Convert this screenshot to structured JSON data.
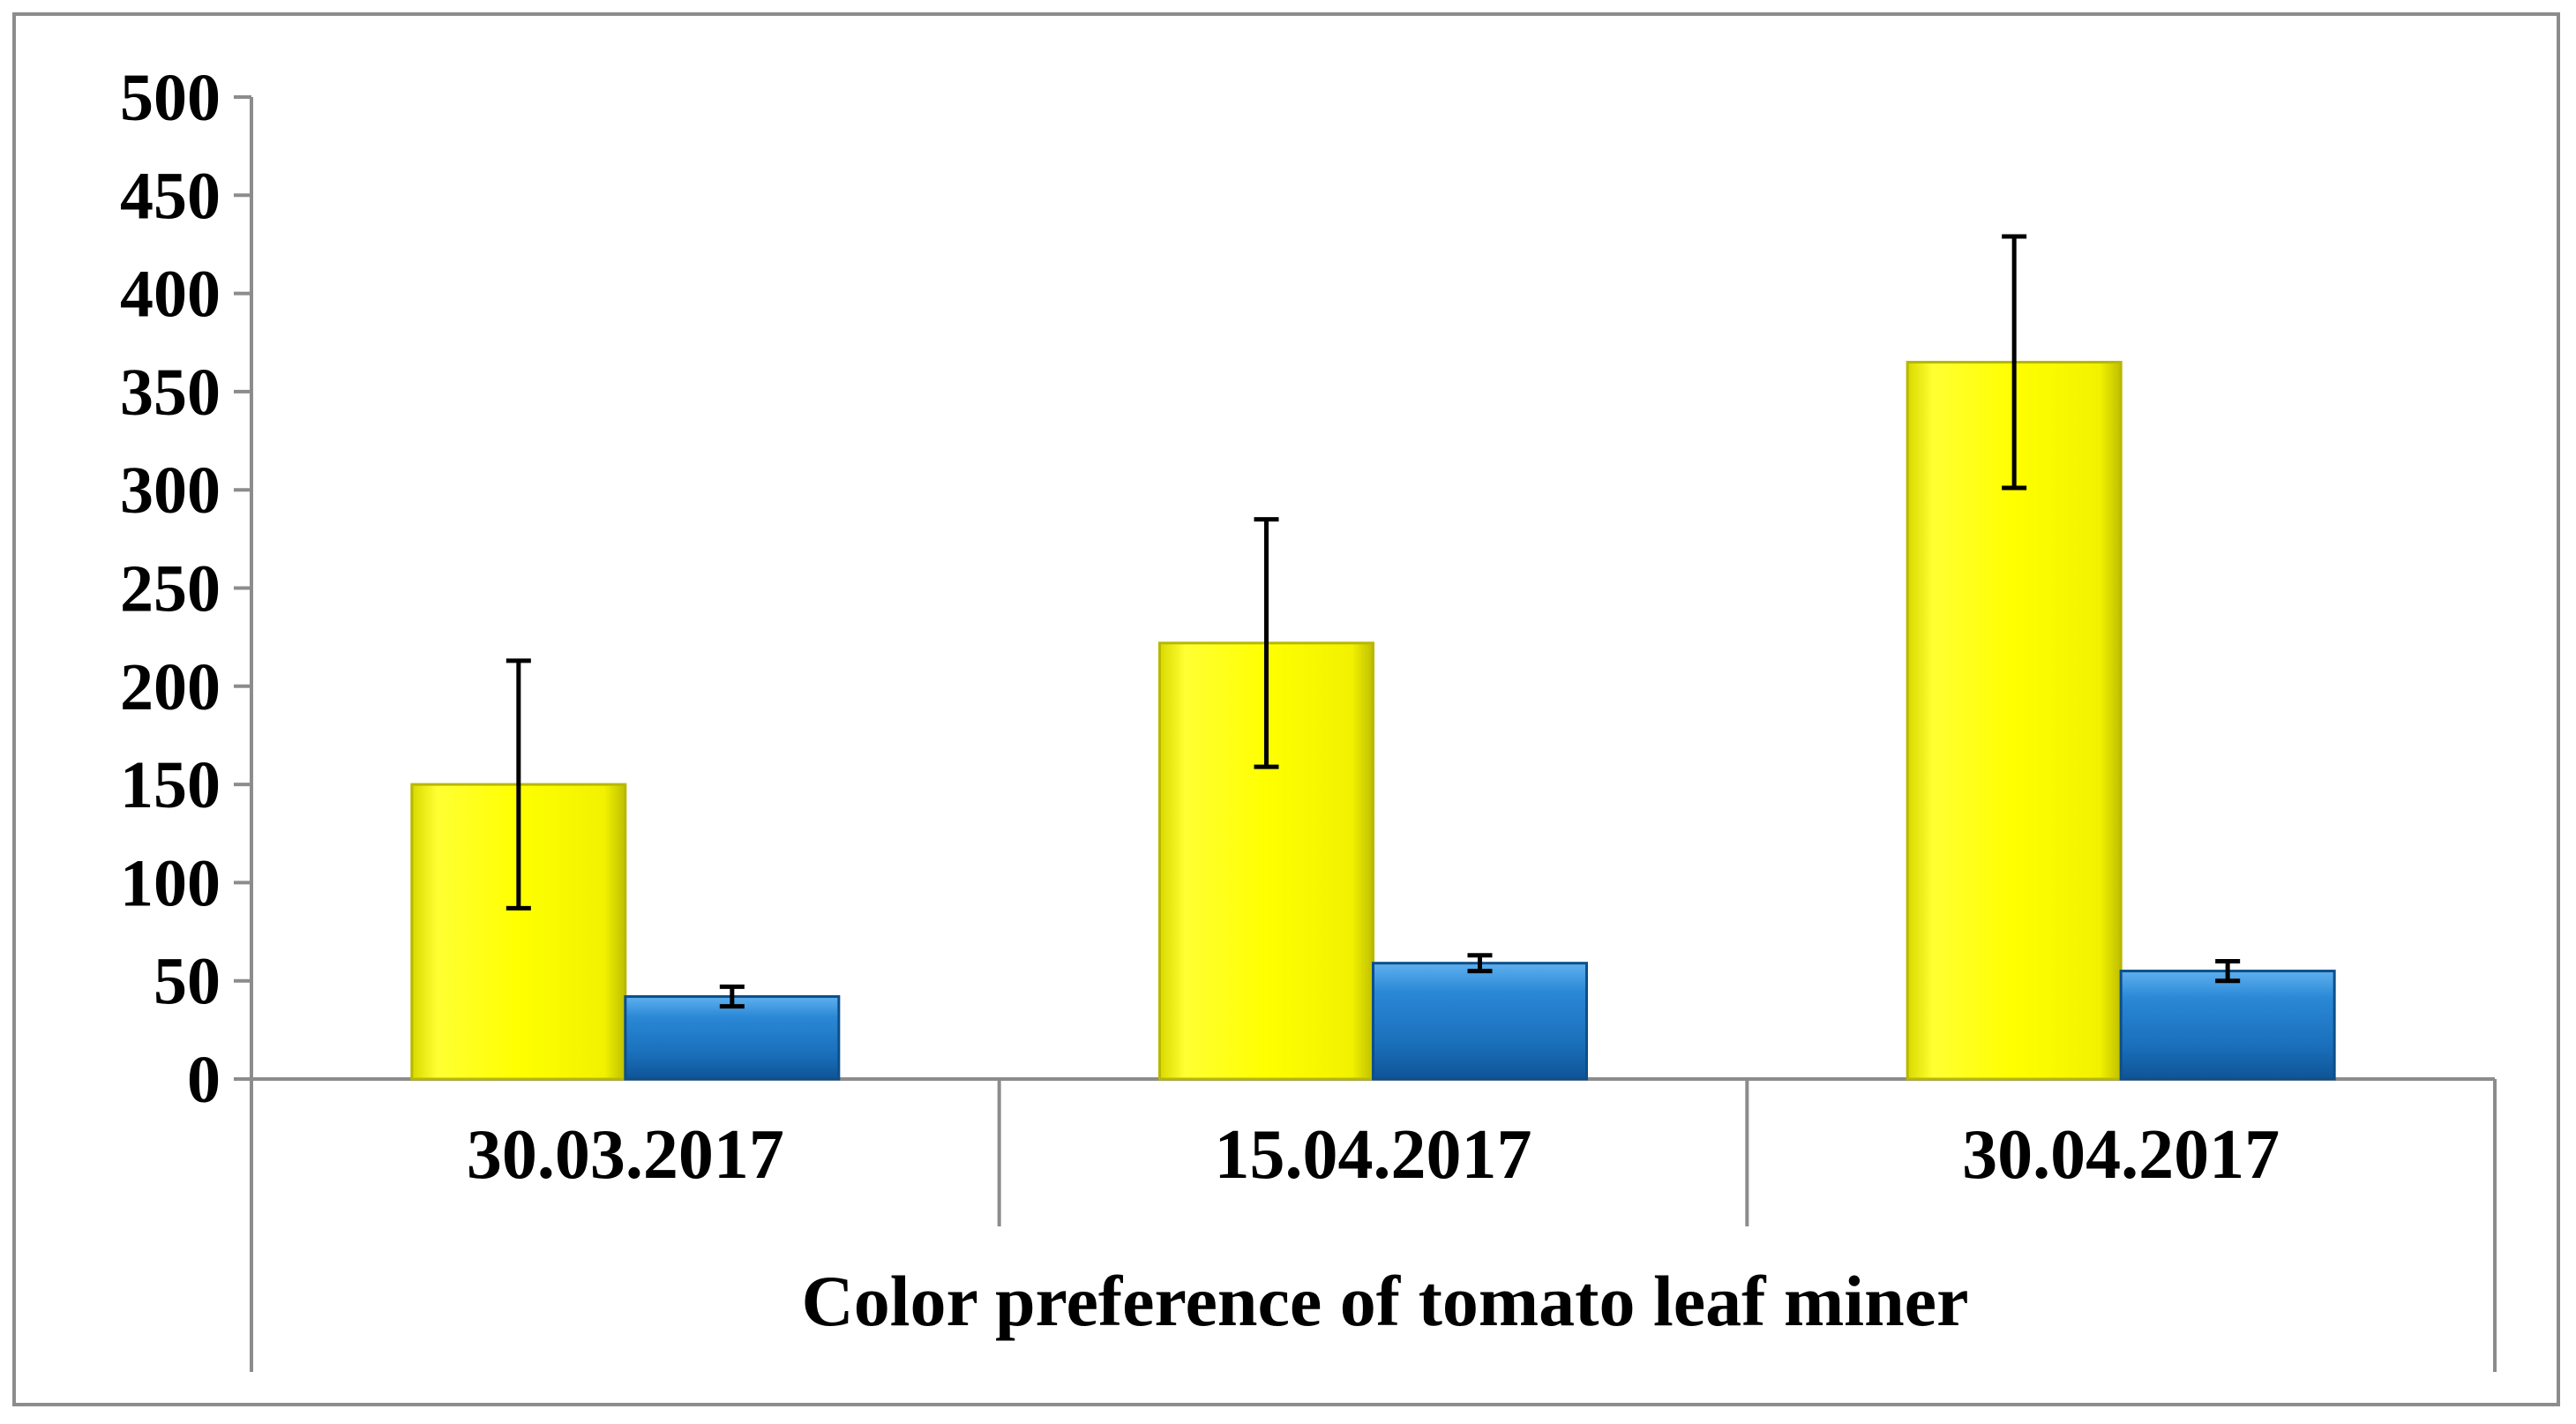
{
  "chart_data": {
    "type": "bar",
    "title": "",
    "xlabel": "Color preference of tomato leaf miner",
    "ylabel": "",
    "ylim": [
      0,
      500
    ],
    "yticks": [
      0,
      50,
      100,
      150,
      200,
      250,
      300,
      350,
      400,
      450,
      500
    ],
    "ytick_labels": [
      "0",
      "50",
      "100",
      "150",
      "200",
      "250",
      "300",
      "350",
      "400",
      "450",
      "500"
    ],
    "categories": [
      "30.03.2017",
      "15.04.2017",
      "30.04.2017"
    ],
    "grid": false,
    "legend": "none",
    "series": [
      {
        "name": "Yellow",
        "color": "#ffff00",
        "edge_color": "#b8b800",
        "values": [
          150,
          222,
          365
        ],
        "errors": [
          63,
          63,
          64
        ]
      },
      {
        "name": "Blue",
        "color": "#1f7ac8",
        "edge_color": "#0d4f8a",
        "values": [
          42,
          59,
          55
        ],
        "errors": [
          5,
          4,
          5
        ]
      }
    ],
    "colors": {
      "axis": "#8c8c8c",
      "error_bar": "#000000",
      "frame": "#8c8c8c"
    }
  }
}
